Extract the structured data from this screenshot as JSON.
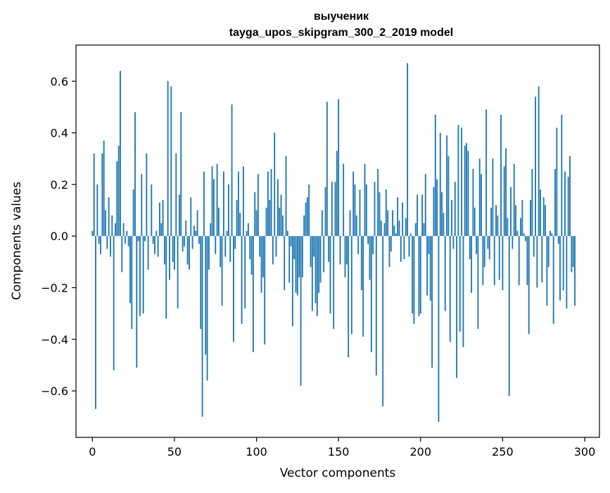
{
  "chart_data": {
    "type": "bar",
    "title": "выученик",
    "subtitle": "tayga_upos_skipgram_300_2_2019 model",
    "xlabel": "Vector components",
    "ylabel": "Components values",
    "xlim": [
      -10,
      309
    ],
    "ylim": [
      -0.78,
      0.74
    ],
    "xticks": [
      0,
      50,
      100,
      150,
      200,
      250,
      300
    ],
    "yticks": [
      -0.6,
      -0.4,
      -0.2,
      0.0,
      0.2,
      0.4,
      0.6
    ],
    "ytick_labels": [
      "−0.6",
      "−0.4",
      "−0.2",
      "0.0",
      "0.2",
      "0.4",
      "0.6"
    ],
    "bar_color": "#1f77b4",
    "grid": false,
    "values": [
      0.02,
      0.32,
      -0.67,
      0.2,
      -0.03,
      -0.07,
      0.32,
      0.37,
      0.1,
      -0.05,
      0.15,
      -0.08,
      0.08,
      -0.52,
      0.05,
      0.29,
      0.35,
      0.64,
      -0.14,
      0.05,
      -0.03,
      0.02,
      -0.04,
      -0.26,
      -0.36,
      0.18,
      0.48,
      -0.51,
      -0.02,
      -0.31,
      0.24,
      -0.3,
      -0.02,
      0.32,
      -0.13,
      0.0,
      0.2,
      -0.03,
      -0.07,
      0.02,
      -0.08,
      0.13,
      0.05,
      0.14,
      -0.11,
      -0.32,
      0.6,
      -0.17,
      0.58,
      -0.1,
      -0.13,
      0.32,
      -0.28,
      0.16,
      0.48,
      -0.06,
      -0.04,
      0.06,
      -0.11,
      -0.13,
      0.15,
      -0.05,
      0.04,
      0.02,
      0.1,
      -0.03,
      -0.36,
      -0.7,
      0.25,
      -0.46,
      -0.56,
      -0.13,
      0.05,
      0.27,
      0.22,
      -0.07,
      0.28,
      0.11,
      -0.12,
      -0.27,
      0.25,
      -0.08,
      0.02,
      0.2,
      -0.1,
      0.51,
      -0.41,
      -0.05,
      0.14,
      0.25,
      0.09,
      -0.34,
      0.27,
      -0.28,
      0.02,
      0.05,
      -0.09,
      -0.15,
      -0.45,
      0.17,
      0.1,
      0.24,
      -0.08,
      -0.22,
      -0.16,
      -0.42,
      0.11,
      0.25,
      0.14,
      0.26,
      -0.11,
      0.4,
      -0.08,
      0.22,
      0.11,
      0.16,
      0.08,
      -0.21,
      0.31,
      0.02,
      -0.18,
      -0.04,
      -0.35,
      -0.09,
      -0.22,
      -0.23,
      -0.16,
      -0.58,
      -0.16,
      0.08,
      0.13,
      0.15,
      0.2,
      -0.12,
      -0.29,
      -0.08,
      -0.26,
      -0.31,
      -0.22,
      -0.18,
      0.1,
      -0.14,
      0.19,
      0.52,
      -0.1,
      -0.3,
      0.21,
      -0.36,
      0.21,
      0.33,
      0.53,
      -0.11,
      0.0,
      0.28,
      -0.16,
      -0.11,
      -0.47,
      0.1,
      -0.38,
      0.25,
      0.2,
      0.08,
      -0.07,
      0.18,
      -0.21,
      -0.39,
      0.28,
      0.2,
      -0.03,
      -0.17,
      -0.45,
      -0.07,
      0.21,
      -0.54,
      0.26,
      0.17,
      0.06,
      -0.66,
      0.05,
      0.18,
      0.1,
      -0.12,
      -0.06,
      0.1,
      0.04,
      0.01,
      0.15,
      0.06,
      -0.1,
      0.13,
      -0.09,
      0.07,
      0.67,
      -0.08,
      0.01,
      -0.3,
      -0.34,
      0.05,
      0.16,
      -0.31,
      -0.3,
      0.16,
      0.05,
      0.24,
      -0.23,
      -0.07,
      -0.25,
      -0.51,
      0.19,
      0.47,
      0.22,
      -0.72,
      0.4,
      0.17,
      0.09,
      -0.29,
      0.39,
      0.31,
      -0.41,
      0.14,
      -0.05,
      0.21,
      -0.55,
      0.43,
      -0.37,
      0.42,
      -0.43,
      0.35,
      0.36,
      0.33,
      -0.09,
      -0.22,
      0.26,
      0.11,
      -0.07,
      -0.36,
      0.3,
      0.24,
      -0.19,
      -0.12,
      0.49,
      -0.05,
      -0.09,
      0.11,
      0.3,
      -0.19,
      0.12,
      0.08,
      -0.17,
      0.47,
      -0.21,
      0.27,
      0.34,
      0.07,
      -0.62,
      0.19,
      -0.05,
      0.28,
      0.12,
      0.02,
      -0.19,
      0.07,
      0.14,
      0.01,
      -0.02,
      -0.19,
      -0.38,
      0.14,
      0.26,
      -0.08,
      0.54,
      -0.2,
      0.58,
      0.18,
      -0.18,
      0.15,
      0.12,
      -0.27,
      -0.12,
      0.02,
      0.01,
      -0.34,
      0.26,
      0.42,
      -0.03,
      -0.25,
      0.47,
      -0.21,
      0.25,
      -0.28,
      0.23,
      0.31,
      -0.14,
      -0.12,
      -0.27
    ]
  }
}
